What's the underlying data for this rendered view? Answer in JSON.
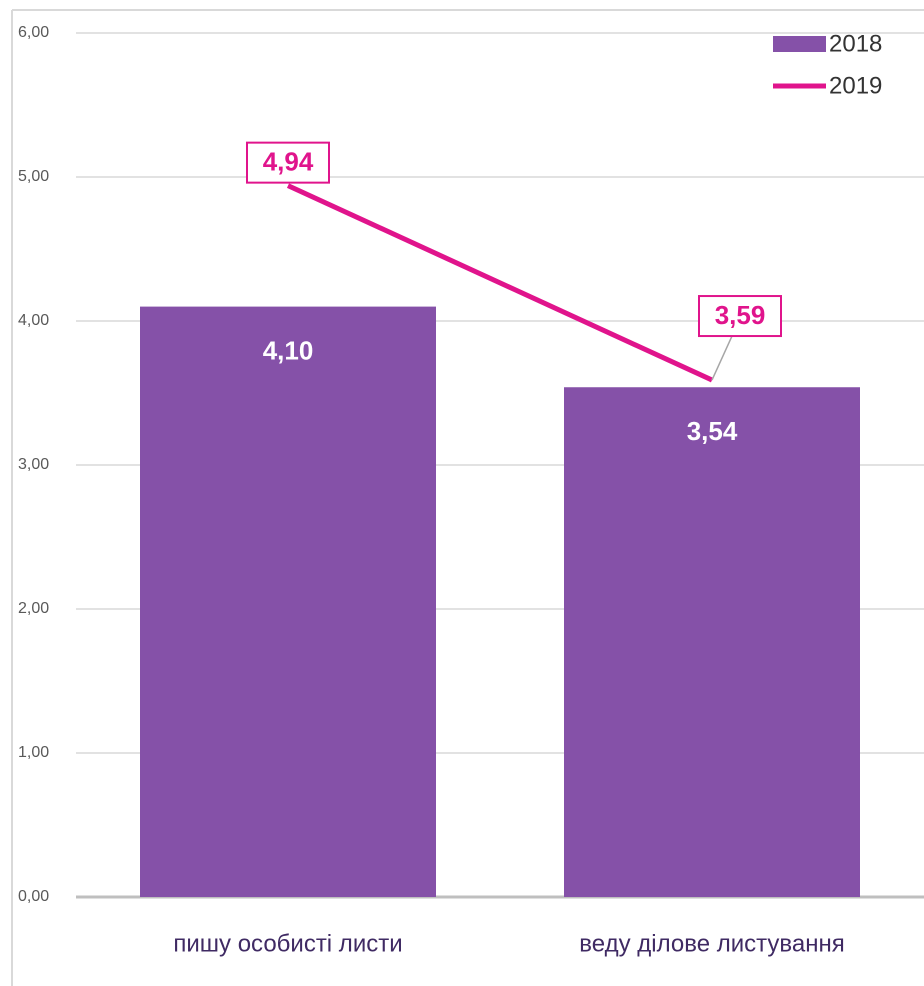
{
  "chart_data": {
    "type": "bar",
    "categories": [
      "пишу особисті листи",
      "веду ділове листування"
    ],
    "series": [
      {
        "name": "2018",
        "type": "bar",
        "color": "#8551a8",
        "values": [
          4.1,
          3.54
        ],
        "value_labels": [
          "4,10",
          "3,54"
        ]
      },
      {
        "name": "2019",
        "type": "line",
        "color": "#e0148c",
        "values": [
          4.94,
          3.59
        ],
        "value_labels": [
          "4,94",
          "3,59"
        ]
      }
    ],
    "ylim": [
      0,
      6
    ],
    "yticks": [
      {
        "value": 0,
        "label": "0,00"
      },
      {
        "value": 1,
        "label": "1,00"
      },
      {
        "value": 2,
        "label": "2,00"
      },
      {
        "value": 3,
        "label": "3,00"
      },
      {
        "value": 4,
        "label": "4,00"
      },
      {
        "value": 5,
        "label": "5,00"
      },
      {
        "value": 6,
        "label": "6,00"
      }
    ],
    "grid": true,
    "legend": "top-right"
  }
}
